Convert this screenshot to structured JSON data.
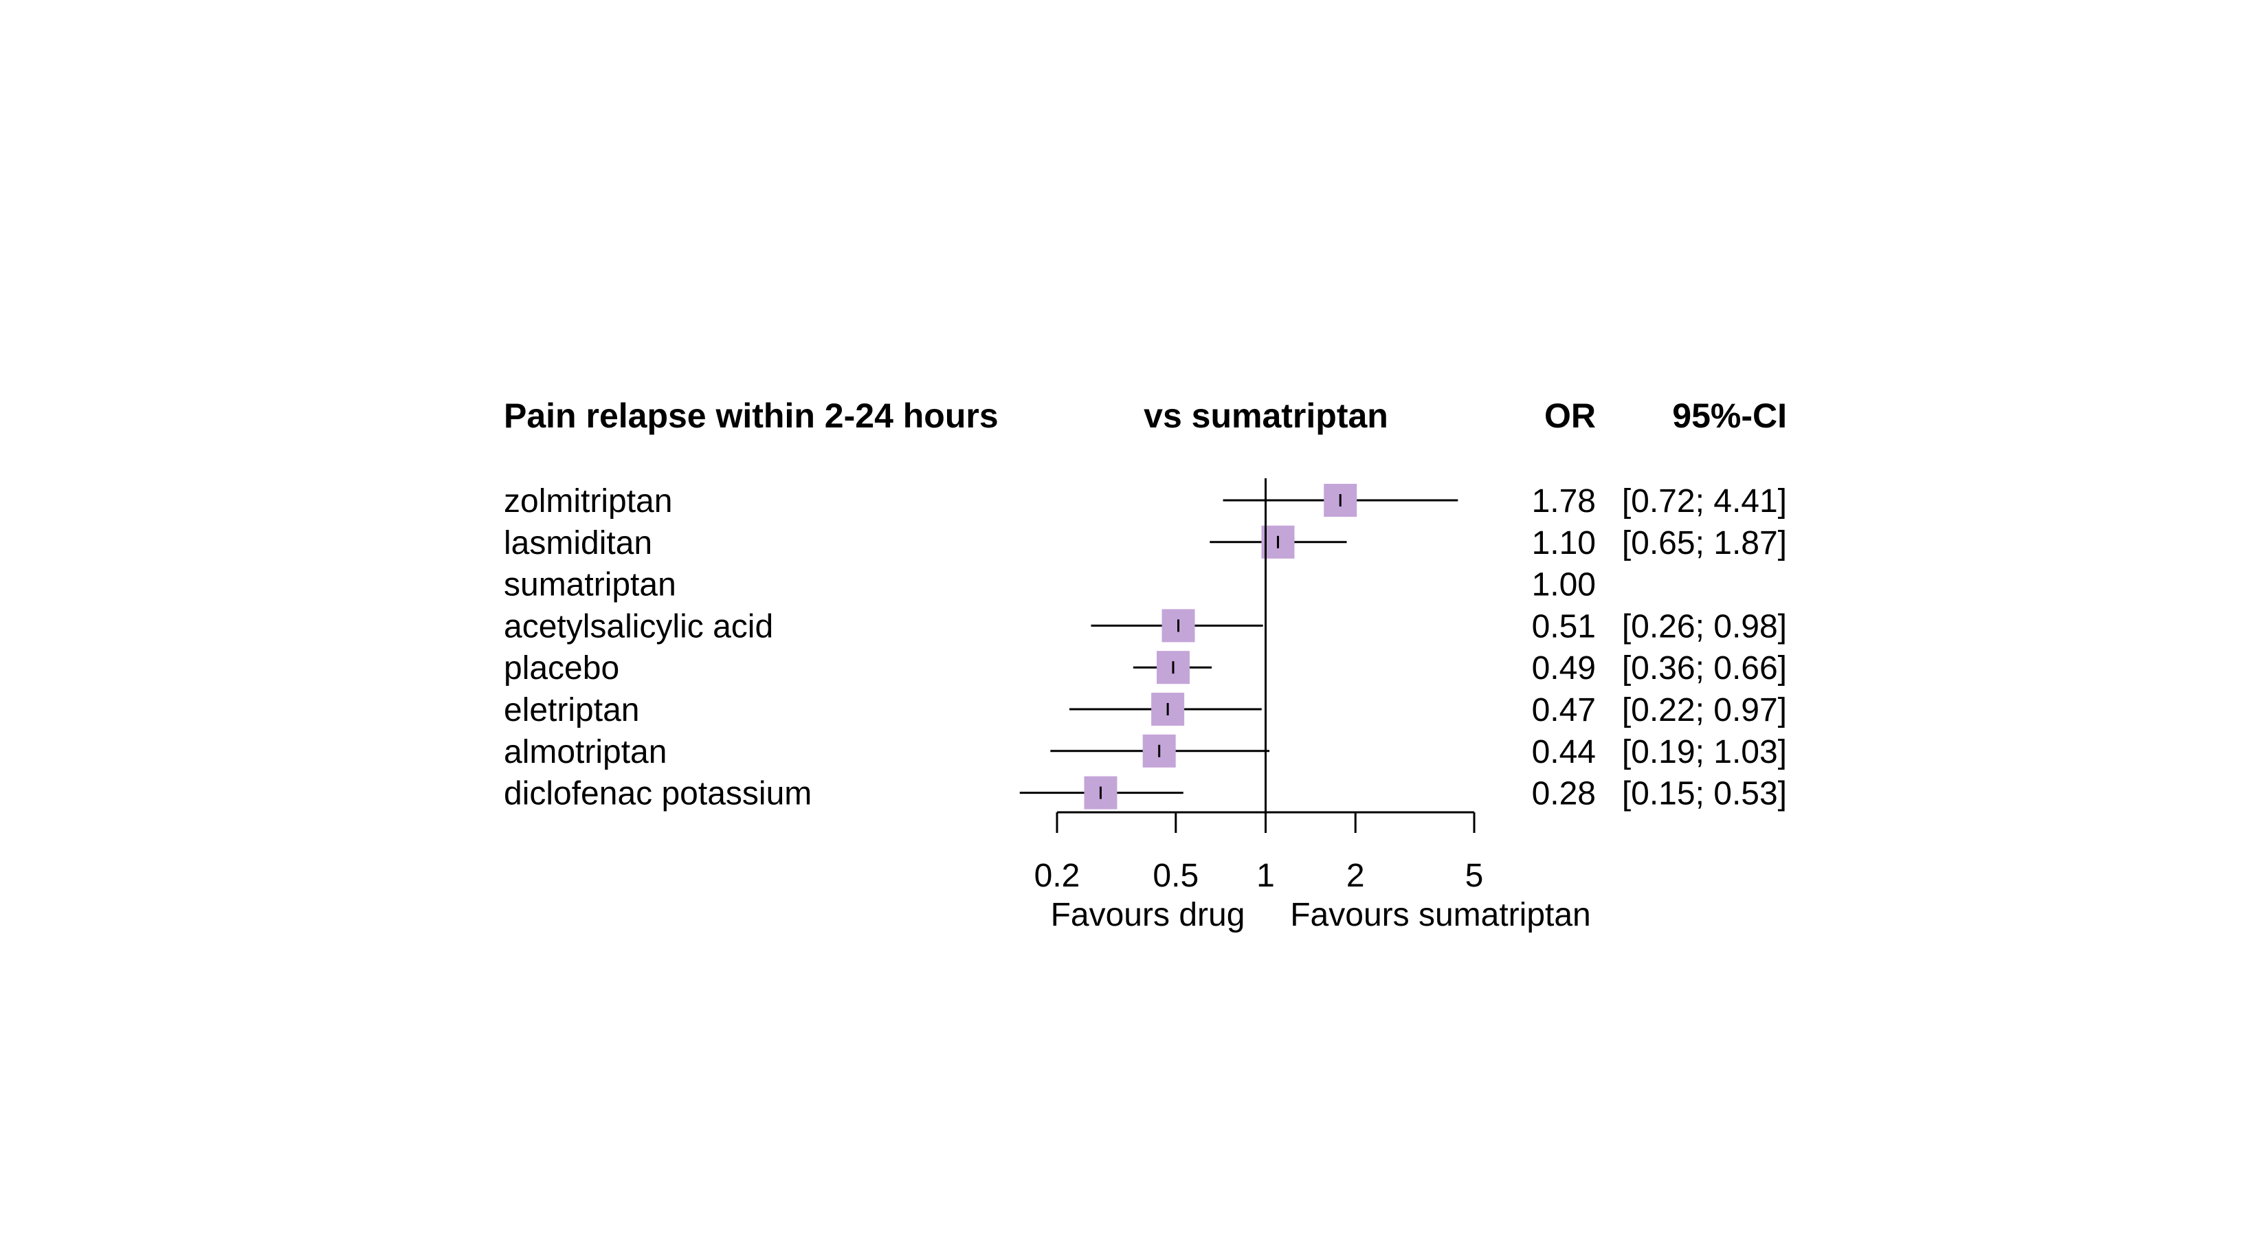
{
  "chart_data": {
    "type": "forest",
    "title": "Pain relapse within 2-24 hours",
    "comparison_label": "vs sumatriptan",
    "or_header": "OR",
    "ci_header": "95%-CI",
    "x_scale": "log",
    "xlim": [
      0.2,
      5
    ],
    "reference_value": 1,
    "ticks": [
      {
        "value": 0.2,
        "label": "0.2"
      },
      {
        "value": 0.5,
        "label": "0.5"
      },
      {
        "value": 1,
        "label": "1"
      },
      {
        "value": 2,
        "label": "2"
      },
      {
        "value": 5,
        "label": "5"
      }
    ],
    "left_annotation": "Favours drug",
    "right_annotation": "Favours sumatriptan",
    "marker_color": "#c4a5d8",
    "rows": [
      {
        "name": "zolmitriptan",
        "or": 1.78,
        "lower": 0.72,
        "upper": 4.41,
        "or_text": "1.78",
        "ci_text": "[0.72; 4.41]"
      },
      {
        "name": "lasmiditan",
        "or": 1.1,
        "lower": 0.65,
        "upper": 1.87,
        "or_text": "1.10",
        "ci_text": "[0.65; 1.87]"
      },
      {
        "name": "sumatriptan",
        "or": 1.0,
        "lower": null,
        "upper": null,
        "or_text": "1.00",
        "ci_text": ""
      },
      {
        "name": "acetylsalicylic acid",
        "or": 0.51,
        "lower": 0.26,
        "upper": 0.98,
        "or_text": "0.51",
        "ci_text": "[0.26; 0.98]"
      },
      {
        "name": "placebo",
        "or": 0.49,
        "lower": 0.36,
        "upper": 0.66,
        "or_text": "0.49",
        "ci_text": "[0.36; 0.66]"
      },
      {
        "name": "eletriptan",
        "or": 0.47,
        "lower": 0.22,
        "upper": 0.97,
        "or_text": "0.47",
        "ci_text": "[0.22; 0.97]"
      },
      {
        "name": "almotriptan",
        "or": 0.44,
        "lower": 0.19,
        "upper": 1.03,
        "or_text": "0.44",
        "ci_text": "[0.19; 1.03]"
      },
      {
        "name": "diclofenac potassium",
        "or": 0.28,
        "lower": 0.15,
        "upper": 0.53,
        "or_text": "0.28",
        "ci_text": "[0.15; 0.53]"
      }
    ]
  }
}
